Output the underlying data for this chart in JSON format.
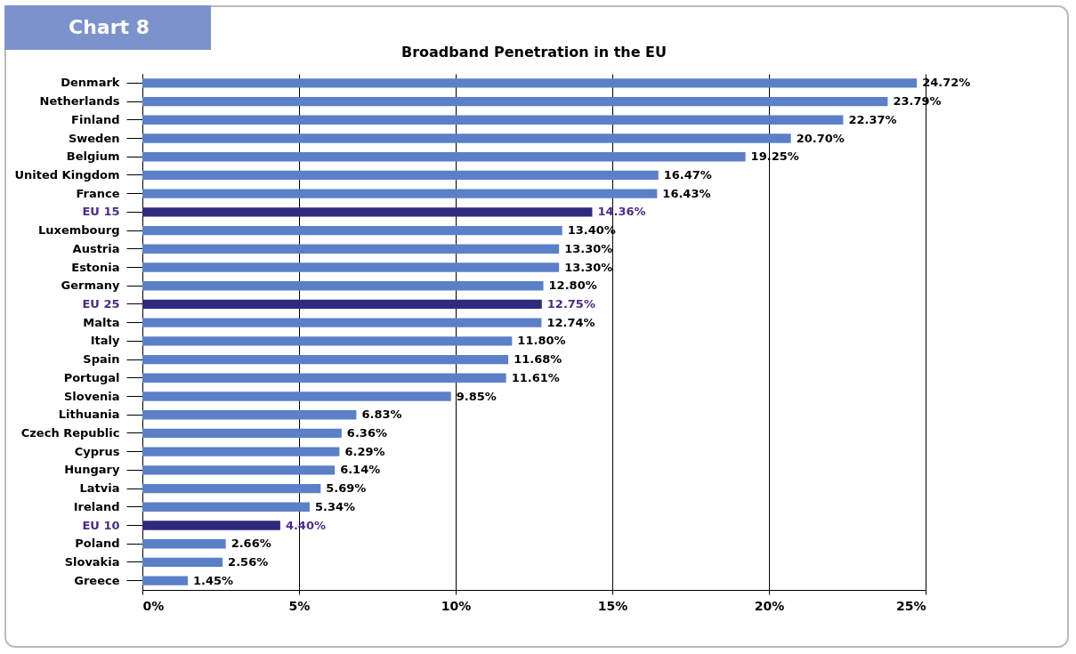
{
  "chart_data": {
    "type": "bar",
    "orientation": "horizontal",
    "title": "Broadband Penetration in the EU",
    "annotations": [
      "Chart 8"
    ],
    "categories": [
      "Denmark",
      "Netherlands",
      "Finland",
      "Sweden",
      "Belgium",
      "United Kingdom",
      "France",
      "EU 15",
      "Luxembourg",
      "Austria",
      "Estonia",
      "Germany",
      "EU 25",
      "Malta",
      "Italy",
      "Spain",
      "Portugal",
      "Slovenia",
      "Lithuania",
      "Czech Republic",
      "Cyprus",
      "Hungary",
      "Latvia",
      "Ireland",
      "EU 10",
      "Poland",
      "Slovakia",
      "Greece"
    ],
    "values": [
      24.72,
      23.79,
      22.37,
      20.7,
      19.25,
      16.47,
      16.43,
      14.36,
      13.4,
      13.3,
      13.3,
      12.8,
      12.75,
      12.74,
      11.8,
      11.68,
      11.61,
      9.85,
      6.83,
      6.36,
      6.29,
      6.14,
      5.69,
      5.34,
      4.4,
      2.66,
      2.56,
      1.45
    ],
    "value_labels": [
      "24.72%",
      "23.79%",
      "22.37%",
      "20.70%",
      "19.25%",
      "16.47%",
      "16.43%",
      "14.36%",
      "13.40%",
      "13.30%",
      "13.30%",
      "12.80%",
      "12.75%",
      "12.74%",
      "11.80%",
      "11.68%",
      "11.61%",
      "9.85%",
      "6.83%",
      "6.36%",
      "6.29%",
      "6.14%",
      "5.69%",
      "5.34%",
      "4.40%",
      "2.66%",
      "2.56%",
      "1.45%"
    ],
    "colors": [
      "#5b80c8",
      "#5b80c8",
      "#5b80c8",
      "#5b80c8",
      "#5b80c8",
      "#5b80c8",
      "#5b80c8",
      "#2e2b7e",
      "#5b80c8",
      "#5b80c8",
      "#5b80c8",
      "#5b80c8",
      "#2e2b7e",
      "#5b80c8",
      "#5b80c8",
      "#5b80c8",
      "#5b80c8",
      "#5b80c8",
      "#5b80c8",
      "#5b80c8",
      "#5b80c8",
      "#5b80c8",
      "#5b80c8",
      "#5b80c8",
      "#2e2b7e",
      "#5b80c8",
      "#5b80c8",
      "#5b80c8"
    ],
    "xlim": [
      0,
      25
    ],
    "xticks": [
      {
        "value": 0,
        "label": "0%"
      },
      {
        "value": 5,
        "label": "5%"
      },
      {
        "value": 10,
        "label": "10%"
      },
      {
        "value": 15,
        "label": "15%"
      },
      {
        "value": 20,
        "label": "20%"
      },
      {
        "value": 25,
        "label": "25%"
      }
    ],
    "grid": "x"
  }
}
